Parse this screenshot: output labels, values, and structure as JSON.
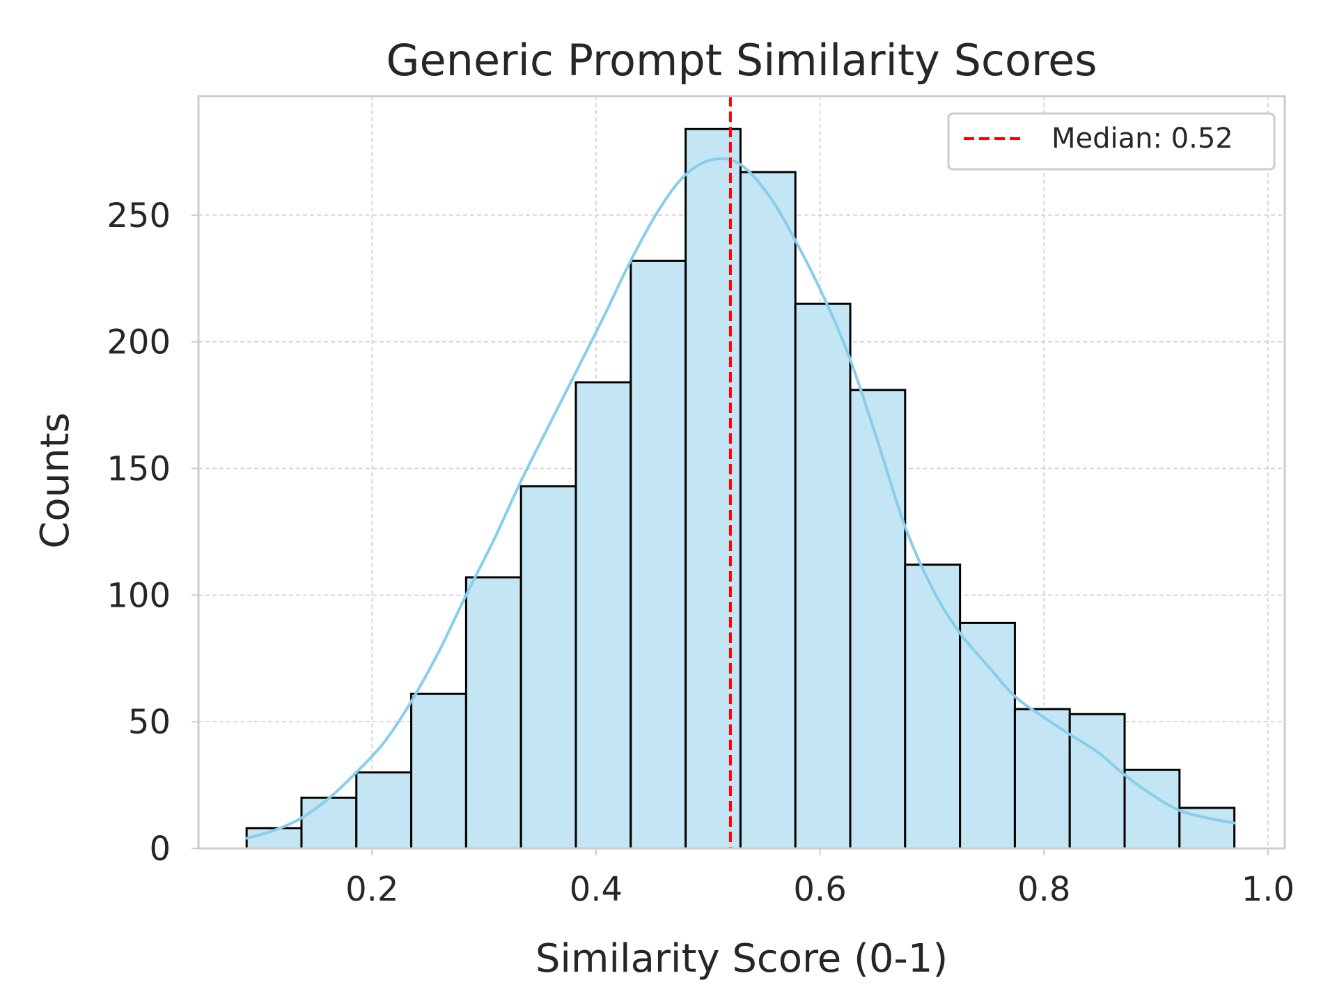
{
  "chart_data": {
    "type": "bar",
    "title": "Generic Prompt Similarity Scores",
    "xlabel": "Similarity Score (0-1)",
    "ylabel": "Counts",
    "xlim": [
      0.045,
      1.015
    ],
    "ylim": [
      0,
      297
    ],
    "xticks": [
      0.2,
      0.4,
      0.6,
      0.8,
      1.0
    ],
    "xtick_labels": [
      "0.2",
      "0.4",
      "0.6",
      "0.8",
      "1.0"
    ],
    "yticks": [
      0,
      50,
      100,
      150,
      200,
      250
    ],
    "ytick_labels": [
      "0",
      "50",
      "100",
      "150",
      "200",
      "250"
    ],
    "grid": true,
    "bins": [
      {
        "x0": 0.088,
        "x1": 0.137,
        "count": 8
      },
      {
        "x0": 0.137,
        "x1": 0.186,
        "count": 20
      },
      {
        "x0": 0.186,
        "x1": 0.235,
        "count": 30
      },
      {
        "x0": 0.235,
        "x1": 0.284,
        "count": 61
      },
      {
        "x0": 0.284,
        "x1": 0.333,
        "count": 107
      },
      {
        "x0": 0.333,
        "x1": 0.382,
        "count": 143
      },
      {
        "x0": 0.382,
        "x1": 0.431,
        "count": 184
      },
      {
        "x0": 0.431,
        "x1": 0.48,
        "count": 232
      },
      {
        "x0": 0.48,
        "x1": 0.529,
        "count": 284
      },
      {
        "x0": 0.529,
        "x1": 0.578,
        "count": 267
      },
      {
        "x0": 0.578,
        "x1": 0.627,
        "count": 215
      },
      {
        "x0": 0.627,
        "x1": 0.676,
        "count": 181
      },
      {
        "x0": 0.676,
        "x1": 0.725,
        "count": 112
      },
      {
        "x0": 0.725,
        "x1": 0.774,
        "count": 89
      },
      {
        "x0": 0.774,
        "x1": 0.823,
        "count": 55
      },
      {
        "x0": 0.823,
        "x1": 0.872,
        "count": 53
      },
      {
        "x0": 0.872,
        "x1": 0.921,
        "count": 31
      },
      {
        "x0": 0.921,
        "x1": 0.97,
        "count": 16
      }
    ],
    "kde": {
      "x": [
        0.088,
        0.112,
        0.137,
        0.162,
        0.186,
        0.211,
        0.235,
        0.26,
        0.284,
        0.309,
        0.333,
        0.358,
        0.382,
        0.407,
        0.431,
        0.456,
        0.48,
        0.505,
        0.529,
        0.554,
        0.578,
        0.603,
        0.627,
        0.652,
        0.676,
        0.701,
        0.725,
        0.75,
        0.774,
        0.799,
        0.823,
        0.848,
        0.872,
        0.897,
        0.921,
        0.946,
        0.97
      ],
      "y": [
        4,
        7,
        12,
        20,
        30,
        42,
        58,
        78,
        100,
        122,
        145,
        167,
        188,
        210,
        232,
        252,
        266,
        272,
        270,
        258,
        240,
        218,
        193,
        160,
        127,
        102,
        85,
        72,
        60,
        52,
        45,
        38,
        29,
        21,
        15,
        12,
        10
      ]
    },
    "median": {
      "value": 0.52,
      "legend_label": "Median: 0.52",
      "color": "#ff0000"
    },
    "colors": {
      "bar_fill": "#c4e5f3",
      "bar_edge": "#000000",
      "kde_line": "#87ceeb",
      "grid": "#cccccc",
      "axes": "#cccccc",
      "text": "#262626"
    },
    "legend": {
      "position": "top-right",
      "entries": [
        "Median: 0.52"
      ]
    }
  }
}
